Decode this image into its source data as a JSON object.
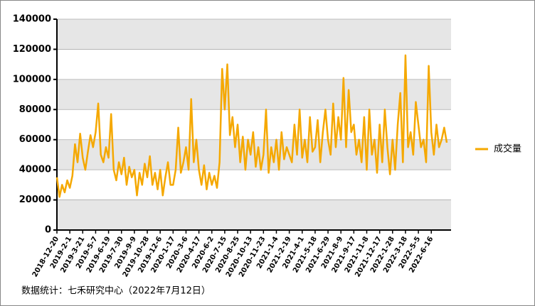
{
  "chart_data": {
    "type": "line",
    "source": "数据统计：七禾研究中心（2022年7月12日）",
    "categories": [
      "2018-12-20",
      null,
      null,
      null,
      null,
      "2019-2-1",
      null,
      null,
      null,
      null,
      "2019-3-21",
      null,
      null,
      null,
      null,
      "2019-5-7",
      null,
      null,
      null,
      null,
      "2019-6-19",
      null,
      null,
      null,
      null,
      "2019-7-30",
      null,
      null,
      null,
      null,
      "2019-9-9",
      null,
      null,
      null,
      null,
      "2019-10-28",
      null,
      null,
      null,
      null,
      "2019-12-6",
      null,
      null,
      null,
      null,
      "2020-1-17",
      null,
      null,
      null,
      null,
      "2020-3-6",
      null,
      null,
      null,
      null,
      "2020-4-17",
      null,
      null,
      null,
      null,
      "2020-6-2",
      null,
      null,
      null,
      null,
      "2020-7-15",
      null,
      null,
      null,
      null,
      "2020-8-25",
      null,
      null,
      null,
      null,
      "2020-10-13",
      null,
      null,
      null,
      null,
      "2020-11-23",
      null,
      null,
      null,
      null,
      "2021-1-4",
      null,
      null,
      null,
      null,
      "2021-2-19",
      null,
      null,
      null,
      null,
      "2021-4-1",
      null,
      null,
      null,
      null,
      "2021-5-18",
      null,
      null,
      null,
      null,
      "2021-6-29",
      null,
      null,
      null,
      null,
      "2021-8-9",
      null,
      null,
      null,
      null,
      "2021-9-17",
      null,
      null,
      null,
      null,
      "2021-11-8",
      null,
      null,
      null,
      null,
      "2021-12-17",
      null,
      null,
      null,
      null,
      "2022-1-28",
      null,
      null,
      null,
      null,
      "2022-3-18",
      null,
      null,
      null,
      null,
      "2022-5-5",
      null,
      null,
      null,
      null,
      "2022-6-16",
      null,
      null,
      null,
      null,
      null,
      null
    ],
    "series": [
      {
        "name": "成交量",
        "color": "#f5a800",
        "values": [
          35000,
          22000,
          30000,
          25000,
          33000,
          28000,
          36000,
          57000,
          45000,
          64000,
          48000,
          40000,
          52000,
          63000,
          55000,
          65000,
          84000,
          50000,
          45000,
          55000,
          48000,
          77000,
          40000,
          33000,
          45000,
          37000,
          48000,
          30000,
          42000,
          35000,
          40000,
          23000,
          38000,
          30000,
          44000,
          35000,
          49000,
          30000,
          38000,
          27000,
          40000,
          23000,
          35000,
          45000,
          30000,
          30000,
          40000,
          68000,
          38000,
          45000,
          55000,
          40000,
          87000,
          45000,
          60000,
          40000,
          30000,
          43000,
          27000,
          38000,
          30000,
          36000,
          28000,
          45000,
          107000,
          80000,
          110000,
          63000,
          75000,
          55000,
          70000,
          45000,
          62000,
          40000,
          60000,
          50000,
          65000,
          42000,
          55000,
          40000,
          50000,
          80000,
          38000,
          55000,
          45000,
          60000,
          40000,
          65000,
          47000,
          55000,
          50000,
          45000,
          70000,
          50000,
          80000,
          48000,
          60000,
          45000,
          75000,
          52000,
          55000,
          73000,
          45000,
          65000,
          80000,
          60000,
          50000,
          84000,
          55000,
          75000,
          60000,
          101000,
          55000,
          93000,
          65000,
          70000,
          50000,
          60000,
          45000,
          75000,
          40000,
          80000,
          50000,
          60000,
          38000,
          70000,
          45000,
          80000,
          55000,
          37000,
          60000,
          40000,
          70000,
          91000,
          45000,
          116000,
          55000,
          65000,
          50000,
          85000,
          70000,
          55000,
          60000,
          45000,
          109000,
          65000,
          50000,
          70000,
          55000,
          60000,
          68000,
          58000
        ]
      }
    ],
    "ylim": [
      0,
      140000
    ],
    "yticks": [
      0,
      20000,
      40000,
      60000,
      80000,
      100000,
      120000,
      140000
    ],
    "grid": true,
    "legend": "right"
  }
}
